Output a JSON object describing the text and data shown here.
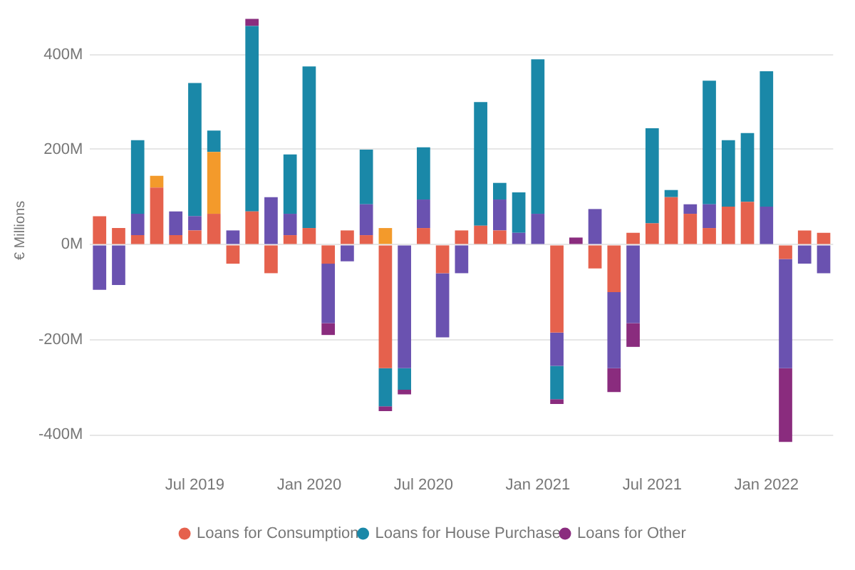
{
  "chart_data": {
    "type": "bar",
    "stacked": true,
    "ylabel": "€ Millions",
    "categories": [
      null,
      null,
      null,
      null,
      null,
      "Jul 2019",
      null,
      null,
      null,
      null,
      null,
      "Jan 2020",
      null,
      null,
      null,
      null,
      null,
      "Jul 2020",
      null,
      null,
      null,
      null,
      null,
      "Jan 2021",
      null,
      null,
      null,
      null,
      null,
      "Jul 2021",
      null,
      null,
      null,
      null,
      null,
      "Jan 2022",
      null,
      null,
      null
    ],
    "series": [
      {
        "name": "Loans for Consumption",
        "color": "#e5614d",
        "values": [
          60,
          35,
          20,
          120,
          20,
          30,
          65,
          -40,
          70,
          -60,
          20,
          35,
          -40,
          30,
          20,
          -260,
          null,
          35,
          -60,
          30,
          40,
          30,
          null,
          null,
          -185,
          null,
          -50,
          -100,
          25,
          45,
          100,
          65,
          35,
          80,
          90,
          null,
          -30,
          30,
          25
        ]
      },
      {
        "color": "#f39a2b",
        "values": [
          null,
          null,
          null,
          25,
          null,
          null,
          130,
          null,
          null,
          null,
          null,
          null,
          null,
          null,
          null,
          35,
          null,
          null,
          null,
          null,
          null,
          null,
          null,
          null,
          null,
          null,
          null,
          null,
          null,
          null,
          null,
          null,
          null,
          null,
          null,
          null,
          null,
          null,
          null
        ]
      },
      {
        "color": "#6a52b0",
        "values": [
          -95,
          -85,
          45,
          null,
          50,
          30,
          null,
          30,
          null,
          100,
          45,
          null,
          -125,
          -35,
          65,
          null,
          -260,
          60,
          -135,
          -60,
          null,
          65,
          25,
          65,
          -70,
          null,
          75,
          -160,
          -165,
          null,
          null,
          20,
          50,
          null,
          null,
          80,
          -230,
          -40,
          -60
        ]
      },
      {
        "name": "Loans for House Purchase",
        "color": "#1a88a8",
        "values": [
          null,
          null,
          155,
          null,
          null,
          280,
          45,
          null,
          390,
          null,
          125,
          340,
          null,
          null,
          115,
          -80,
          -45,
          110,
          null,
          null,
          260,
          35,
          85,
          325,
          -70,
          null,
          null,
          null,
          null,
          200,
          15,
          null,
          260,
          140,
          145,
          285,
          null,
          null,
          null
        ]
      },
      {
        "name": "Loans for Other",
        "color": "#8a2c7e",
        "values": [
          null,
          null,
          null,
          null,
          null,
          null,
          null,
          null,
          15,
          null,
          null,
          null,
          -25,
          null,
          null,
          -10,
          -10,
          null,
          null,
          null,
          null,
          null,
          null,
          null,
          -10,
          15,
          null,
          -50,
          -50,
          null,
          null,
          null,
          null,
          null,
          null,
          null,
          -155,
          null,
          null
        ]
      }
    ],
    "ylim": [
      -420,
      480
    ],
    "yticks": [
      {
        "value": -400,
        "label": "-400M"
      },
      {
        "value": -200,
        "label": "-200M"
      },
      {
        "value": 0,
        "label": "0M"
      },
      {
        "value": 200,
        "label": "200M"
      },
      {
        "value": 400,
        "label": "400M"
      }
    ],
    "grid": "y",
    "legend": "bottom"
  }
}
